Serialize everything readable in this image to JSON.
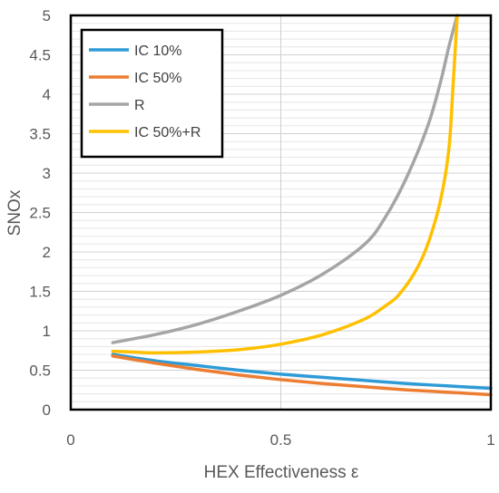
{
  "chart_data": {
    "type": "line",
    "xlabel": "HEX Effectiveness ε",
    "ylabel": "SNOx",
    "xlim": [
      0,
      1
    ],
    "ylim": [
      0,
      5
    ],
    "xticks": [
      "0",
      "0.5",
      "1"
    ],
    "yticks": [
      "0",
      "0.5",
      "1",
      "1.5",
      "2",
      "2.5",
      "3",
      "3.5",
      "4",
      "4.5",
      "5"
    ],
    "grid": {
      "major_vertical": [
        0,
        0.5,
        1
      ],
      "minor_horizontal_step": 0.1,
      "major_horizontal_step": 0.5
    },
    "legend_placement": "top-left",
    "series": [
      {
        "name": "IC 10%",
        "color": "#2E9BD6",
        "x": [
          0.1,
          0.2,
          0.3,
          0.4,
          0.5,
          0.6,
          0.7,
          0.8,
          0.9,
          1.0
        ],
        "y": [
          0.7,
          0.62,
          0.56,
          0.5,
          0.45,
          0.41,
          0.37,
          0.33,
          0.3,
          0.27
        ]
      },
      {
        "name": "IC 50%",
        "color": "#ED7D31",
        "x": [
          0.1,
          0.2,
          0.3,
          0.4,
          0.5,
          0.6,
          0.7,
          0.8,
          0.9,
          1.0
        ],
        "y": [
          0.68,
          0.59,
          0.51,
          0.44,
          0.38,
          0.33,
          0.29,
          0.25,
          0.22,
          0.19
        ]
      },
      {
        "name": "R",
        "color": "#A5A5A5",
        "x": [
          0.1,
          0.2,
          0.3,
          0.4,
          0.5,
          0.6,
          0.7,
          0.75,
          0.8,
          0.85,
          0.88,
          0.9,
          0.92
        ],
        "y": [
          0.85,
          0.95,
          1.08,
          1.25,
          1.45,
          1.72,
          2.1,
          2.45,
          2.95,
          3.6,
          4.15,
          4.6,
          5.0
        ]
      },
      {
        "name": "IC 50%+R",
        "color": "#FFC000",
        "x": [
          0.1,
          0.15,
          0.2,
          0.3,
          0.4,
          0.5,
          0.6,
          0.7,
          0.75,
          0.78,
          0.82,
          0.85,
          0.88,
          0.9,
          0.91,
          0.92
        ],
        "y": [
          0.74,
          0.73,
          0.72,
          0.73,
          0.76,
          0.83,
          0.95,
          1.15,
          1.32,
          1.45,
          1.75,
          2.1,
          2.65,
          3.3,
          4.1,
          5.0
        ]
      }
    ]
  }
}
